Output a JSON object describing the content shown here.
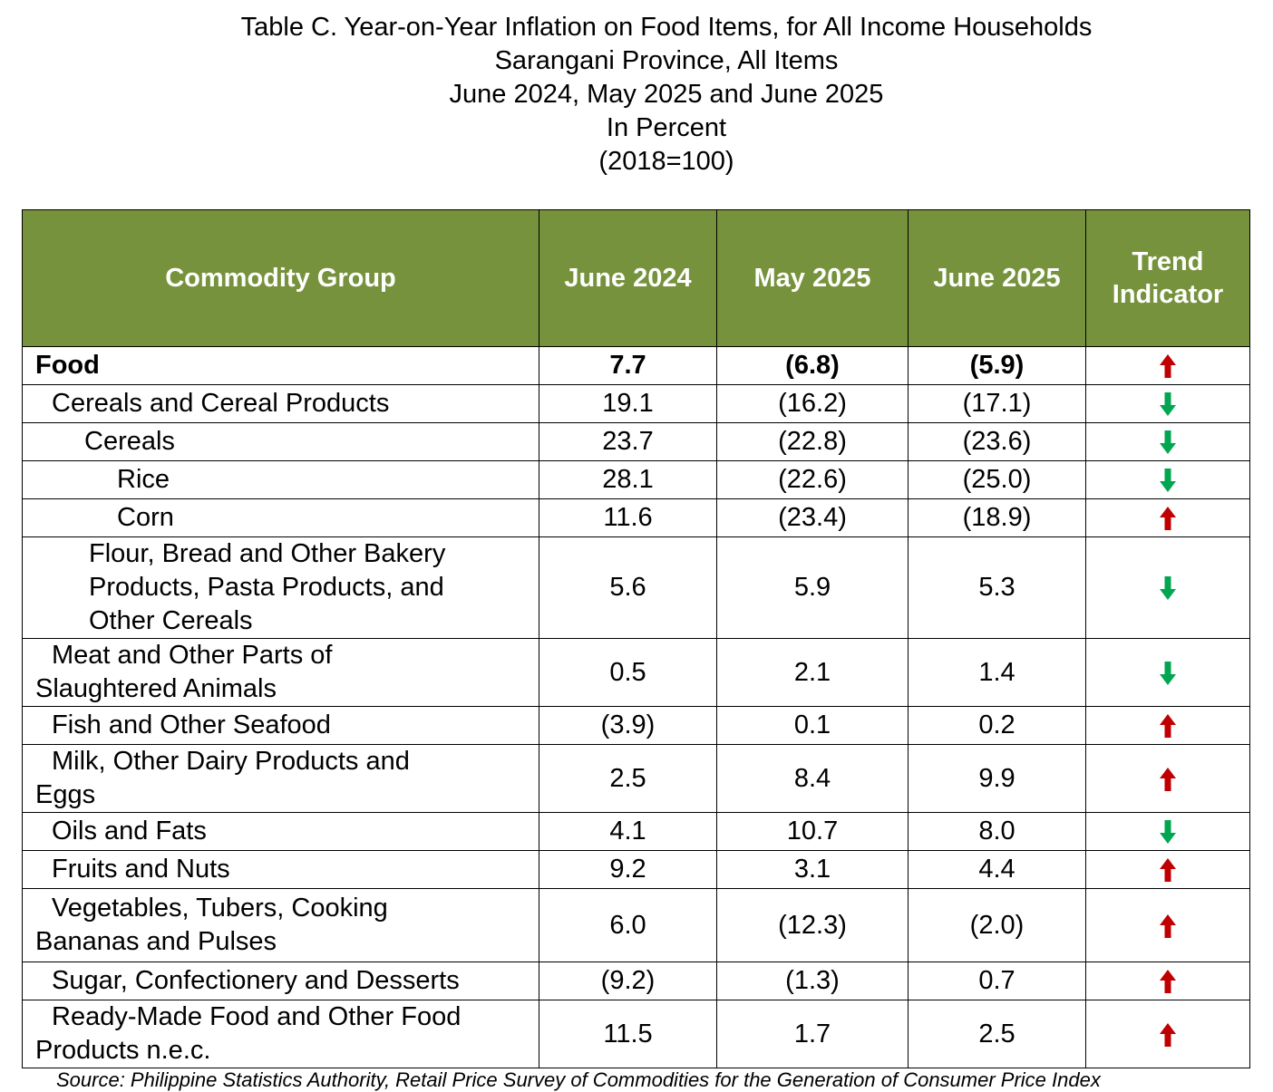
{
  "title": {
    "line1": "Table C. Year-on-Year Inflation on Food Items, for All Income Households",
    "line2": "Sarangani Province, All Items",
    "line3": "June 2024, May 2025 and June 2025",
    "line4": "In Percent",
    "line5": "(2018=100)"
  },
  "colors": {
    "header_bg": "#76923c",
    "up_arrow": "#c00000",
    "down_arrow": "#00a650"
  },
  "table": {
    "headers": [
      "Commodity Group",
      "June 2024",
      "May 2025",
      "June 2025",
      "Trend Indicator"
    ]
  },
  "source": "Source: Philippine Statistics Authority, Retail Price Survey of Commodities for the Generation of Consumer Price Index",
  "chart_data": {
    "type": "table",
    "title": "Table C. Year-on-Year Inflation on Food Items, for All Income Households",
    "columns": [
      "Commodity Group",
      "June 2024",
      "May 2025",
      "June 2025",
      "Trend Indicator"
    ],
    "rows": [
      {
        "name": "Food",
        "jun2024": "7.7",
        "may2025": "(6.8)",
        "jun2025": "(5.9)",
        "trend": "up"
      },
      {
        "name": "Cereals and Cereal Products",
        "jun2024": "19.1",
        "may2025": "(16.2)",
        "jun2025": "(17.1)",
        "trend": "down"
      },
      {
        "name": "Cereals",
        "jun2024": "23.7",
        "may2025": "(22.8)",
        "jun2025": "(23.6)",
        "trend": "down"
      },
      {
        "name": "Rice",
        "jun2024": "28.1",
        "may2025": "(22.6)",
        "jun2025": "(25.0)",
        "trend": "down"
      },
      {
        "name": "Corn",
        "jun2024": "11.6",
        "may2025": "(23.4)",
        "jun2025": "(18.9)",
        "trend": "up"
      },
      {
        "name": "Flour, Bread and Other Bakery Products, Pasta Products,  and Other Cereals",
        "name_lines": [
          "Flour, Bread and Other Bakery",
          "Products, Pasta Products,  and",
          "Other Cereals"
        ],
        "jun2024": "5.6",
        "may2025": "5.9",
        "jun2025": "5.3",
        "trend": "down"
      },
      {
        "name": "Meat and Other Parts of Slaughtered Animals",
        "name_lines": [
          "Meat and Other Parts of",
          "Slaughtered Animals"
        ],
        "jun2024": "0.5",
        "may2025": "2.1",
        "jun2025": "1.4",
        "trend": "down"
      },
      {
        "name": "Fish and Other Seafood",
        "jun2024": "(3.9)",
        "may2025": "0.1",
        "jun2025": "0.2",
        "trend": "up"
      },
      {
        "name": "Milk, Other Dairy Products and Eggs",
        "name_lines": [
          "Milk, Other Dairy Products and",
          "Eggs"
        ],
        "jun2024": "2.5",
        "may2025": "8.4",
        "jun2025": "9.9",
        "trend": "up"
      },
      {
        "name": "Oils and Fats",
        "jun2024": "4.1",
        "may2025": "10.7",
        "jun2025": "8.0",
        "trend": "down"
      },
      {
        "name": "Fruits and Nuts",
        "jun2024": "9.2",
        "may2025": "3.1",
        "jun2025": "4.4",
        "trend": "up"
      },
      {
        "name": "Vegetables, Tubers, Cooking Bananas and  Pulses",
        "name_lines": [
          "Vegetables, Tubers, Cooking",
          "Bananas and  Pulses"
        ],
        "jun2024": "6.0",
        "may2025": "(12.3)",
        "jun2025": "(2.0)",
        "trend": "up"
      },
      {
        "name": "Sugar, Confectionery and Desserts",
        "jun2024": "(9.2)",
        "may2025": "(1.3)",
        "jun2025": "0.7",
        "trend": "up"
      },
      {
        "name": "Ready-Made Food and Other Food Products n.e.c.",
        "name_lines": [
          "Ready-Made Food and Other Food",
          "Products n.e.c."
        ],
        "jun2024": "11.5",
        "may2025": "1.7",
        "jun2025": "2.5",
        "trend": "up"
      }
    ]
  }
}
